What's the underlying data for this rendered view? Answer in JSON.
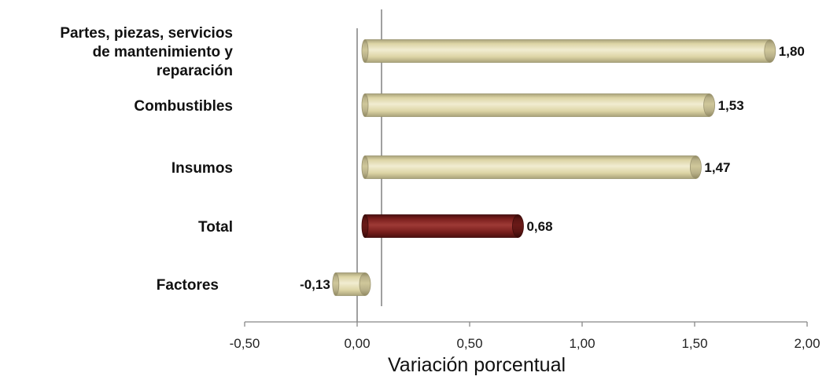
{
  "chart_data": {
    "type": "bar",
    "orientation": "horizontal",
    "title": "",
    "xlabel": "Variación porcentual",
    "ylabel": "",
    "xlim": [
      -0.5,
      2.0
    ],
    "xticks": [
      -0.5,
      0.0,
      0.5,
      1.0,
      1.5,
      2.0
    ],
    "xtick_labels": [
      "-0,50",
      "0,00",
      "0,50",
      "1,00",
      "1,50",
      "2,00"
    ],
    "grid": false,
    "legend": "none",
    "categories": [
      [
        "Partes, piezas, servicios",
        "de mantenimiento  y",
        "reparación"
      ],
      [
        "Combustibles"
      ],
      [
        "Insumos"
      ],
      [
        "Total"
      ],
      [
        "Factores"
      ]
    ],
    "values": [
      1.8,
      1.53,
      1.47,
      0.68,
      -0.13
    ],
    "value_labels": [
      "1,80",
      "1,53",
      "1,47",
      "0,68",
      "-0,13"
    ],
    "highlight_index": 3,
    "colors": {
      "bar": "#ddd5a6",
      "bar_highlight": "#7a1f1d",
      "axis": "#888888",
      "text": "#111111"
    }
  }
}
